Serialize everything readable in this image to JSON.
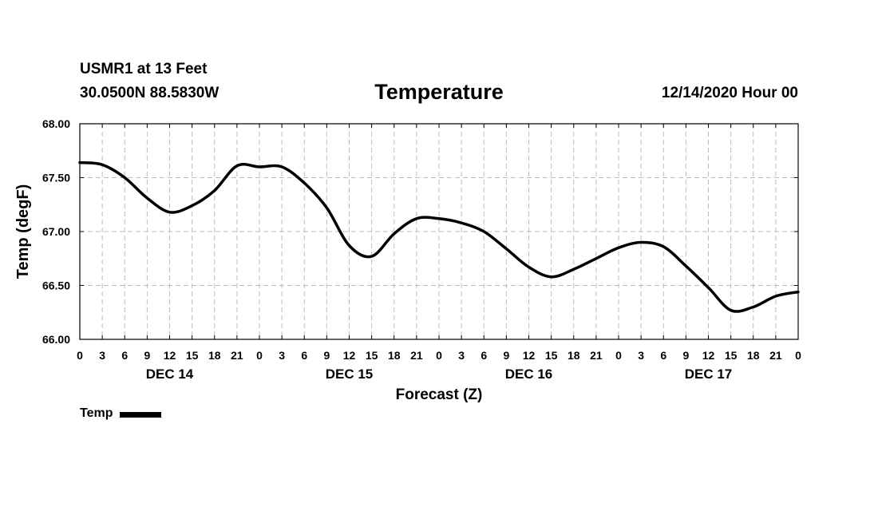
{
  "header": {
    "station": "USMR1 at 13 Feet",
    "coords": "30.0500N 88.5830W",
    "title": "Temperature",
    "timestamp": "12/14/2020 Hour 00"
  },
  "colors": {
    "line": "#000000",
    "grid": "#bbbbbb",
    "background": "#ffffff"
  },
  "chart_data": {
    "type": "line",
    "title": "Temperature",
    "xlabel": "Forecast (Z)",
    "ylabel": "Temp (degF)",
    "xlim": [
      0,
      96
    ],
    "ylim": [
      66.0,
      68.0
    ],
    "y_ticks": [
      "66.00",
      "66.50",
      "67.00",
      "67.50",
      "68.00"
    ],
    "x_tick_labels": [
      "0",
      "3",
      "6",
      "9",
      "12",
      "15",
      "18",
      "21",
      "0",
      "3",
      "6",
      "9",
      "12",
      "15",
      "18",
      "21",
      "0",
      "3",
      "6",
      "9",
      "12",
      "15",
      "18",
      "21",
      "0",
      "3",
      "6",
      "9",
      "12",
      "15",
      "18",
      "21",
      "0"
    ],
    "day_labels": [
      {
        "label": "DEC 14",
        "hour": 12
      },
      {
        "label": "DEC 15",
        "hour": 36
      },
      {
        "label": "DEC 16",
        "hour": 60
      },
      {
        "label": "DEC 17",
        "hour": 84
      }
    ],
    "grid": true,
    "legend": "bottom-left",
    "series": [
      {
        "name": "Temp",
        "x": [
          0,
          3,
          6,
          9,
          12,
          15,
          18,
          21,
          24,
          27,
          30,
          33,
          36,
          39,
          42,
          45,
          48,
          51,
          54,
          57,
          60,
          63,
          66,
          69,
          72,
          75,
          78,
          81,
          84,
          87,
          90,
          93,
          96
        ],
        "values": [
          67.64,
          67.62,
          67.5,
          67.31,
          67.18,
          67.24,
          67.38,
          67.61,
          67.6,
          67.6,
          67.45,
          67.22,
          66.87,
          66.77,
          66.98,
          67.12,
          67.12,
          67.08,
          67.0,
          66.84,
          66.67,
          66.58,
          66.65,
          66.75,
          66.85,
          66.9,
          66.86,
          66.68,
          66.48,
          66.27,
          66.3,
          66.4,
          66.44
        ]
      }
    ]
  }
}
